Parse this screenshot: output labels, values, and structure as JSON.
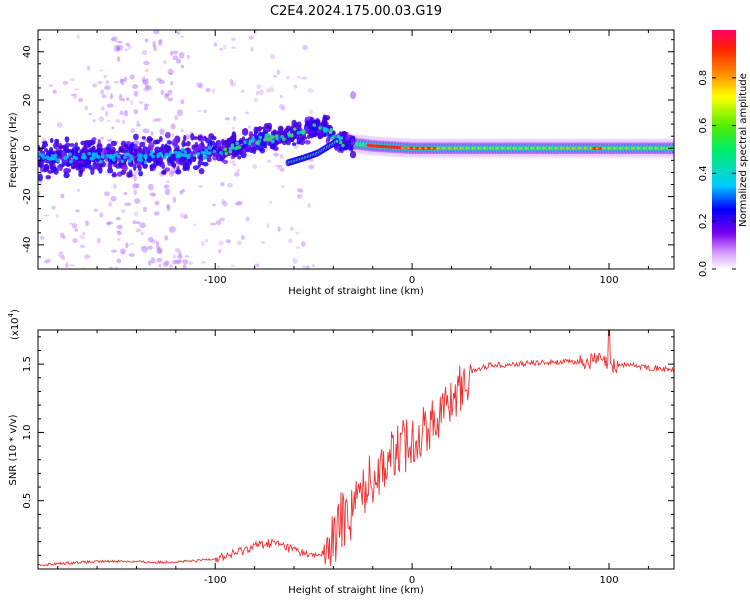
{
  "title": "C2E4.2024.175.00.03.G19",
  "chart_data": [
    {
      "type": "heatmap",
      "xlabel": "Height of straight line (km)",
      "ylabel": "Frequency (Hz)",
      "xlim": [
        -190,
        133
      ],
      "ylim": [
        -50,
        49
      ],
      "xticks": [
        -100,
        0,
        100
      ],
      "xtick_labels": [
        "-100",
        "0",
        "100"
      ],
      "yticks": [
        -40,
        -20,
        0,
        20,
        40
      ],
      "ytick_labels": [
        "-40",
        "-20",
        "0",
        "20",
        "40"
      ],
      "colorbar": {
        "label": "Normalized spectral amplitude",
        "range": [
          0,
          1
        ],
        "ticks": [
          0.0,
          0.2,
          0.4,
          0.6,
          0.8
        ],
        "tick_labels": [
          "0.0",
          "0.2",
          "0.4",
          "0.6",
          "0.8"
        ]
      },
      "track": {
        "x": [
          -190,
          -160,
          -130,
          -100,
          -85,
          -70,
          -60,
          -50,
          -45,
          -40,
          -38,
          -35,
          -30,
          -20,
          -10,
          0,
          20,
          40,
          60,
          80,
          100,
          133
        ],
        "y": [
          -4,
          -4,
          -3,
          -2,
          2,
          5,
          7,
          8,
          9,
          6,
          4,
          3,
          2,
          1,
          0.5,
          0,
          0,
          0,
          0,
          0,
          0,
          0
        ]
      },
      "lower_branch": {
        "x": [
          -63,
          -55,
          -48,
          -42,
          -38
        ],
        "y": [
          -6,
          -4,
          -2,
          1,
          3
        ]
      }
    },
    {
      "type": "line",
      "xlabel": "Height of straight line (km)",
      "ylabel": "SNR (10 * v/v)",
      "yscale_label": "(x10",
      "yscale_exp": "4",
      "yscale_close": ")",
      "xlim": [
        -190,
        133
      ],
      "ylim": [
        0,
        1.75
      ],
      "xticks": [
        -100,
        0,
        100
      ],
      "xtick_labels": [
        "-100",
        "0",
        "100"
      ],
      "yticks": [
        0.5,
        1.0,
        1.5
      ],
      "ytick_labels": [
        "0.5",
        "1.0",
        "1.5"
      ],
      "series": [
        {
          "name": "SNR",
          "color": "#ee3333",
          "x": [
            -190,
            -170,
            -150,
            -130,
            -110,
            -100,
            -90,
            -80,
            -70,
            -60,
            -50,
            -45,
            -40,
            -35,
            -30,
            -25,
            -20,
            -10,
            0,
            10,
            20,
            30,
            40,
            50,
            60,
            70,
            80,
            90,
            95,
            100,
            110,
            120,
            133
          ],
          "y": [
            0.03,
            0.05,
            0.06,
            0.05,
            0.06,
            0.08,
            0.12,
            0.18,
            0.2,
            0.15,
            0.1,
            0.12,
            0.22,
            0.45,
            0.5,
            0.62,
            0.72,
            0.88,
            0.98,
            1.1,
            1.28,
            1.45,
            1.5,
            1.5,
            1.51,
            1.52,
            1.52,
            1.53,
            1.55,
            1.5,
            1.5,
            1.48,
            1.46
          ]
        }
      ]
    }
  ]
}
